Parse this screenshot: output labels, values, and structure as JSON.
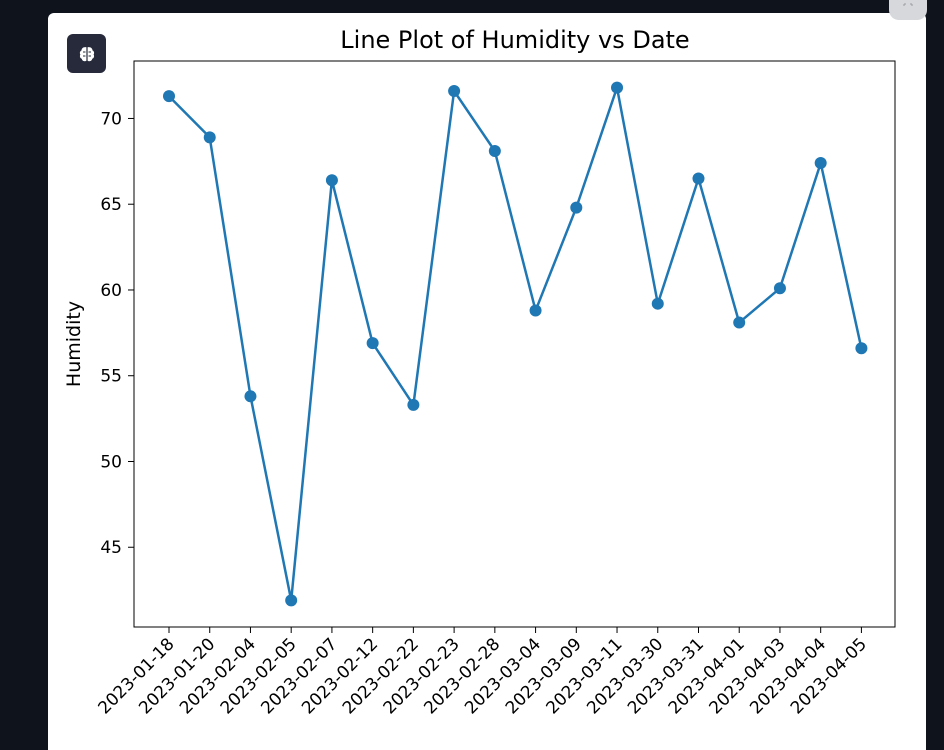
{
  "app": {
    "icon": "brain-icon"
  },
  "colors": {
    "background": "#0f131b",
    "card": "#ffffff",
    "line": "#1f77b4",
    "axis": "#000000"
  },
  "chart_data": {
    "type": "line",
    "title": "Line Plot of Humidity vs Date",
    "xlabel": "",
    "ylabel": "Humidity",
    "categories": [
      "2023-01-18",
      "2023-01-20",
      "2023-02-04",
      "2023-02-05",
      "2023-02-07",
      "2023-02-12",
      "2023-02-22",
      "2023-02-23",
      "2023-02-28",
      "2023-03-04",
      "2023-03-09",
      "2023-03-11",
      "2023-03-30",
      "2023-03-31",
      "2023-04-01",
      "2023-04-03",
      "2023-04-04",
      "2023-04-05"
    ],
    "series": [
      {
        "values": [
          71.3,
          68.9,
          53.8,
          41.9,
          66.4,
          56.9,
          53.3,
          71.6,
          68.1,
          58.8,
          64.8,
          71.8,
          59.2,
          66.5,
          58.1,
          60.1,
          67.4,
          56.6
        ]
      }
    ],
    "yticks": [
      45,
      50,
      55,
      60,
      65,
      70
    ],
    "ylim": [
      40.35,
      73.35
    ],
    "grid": false,
    "legend": "none"
  }
}
